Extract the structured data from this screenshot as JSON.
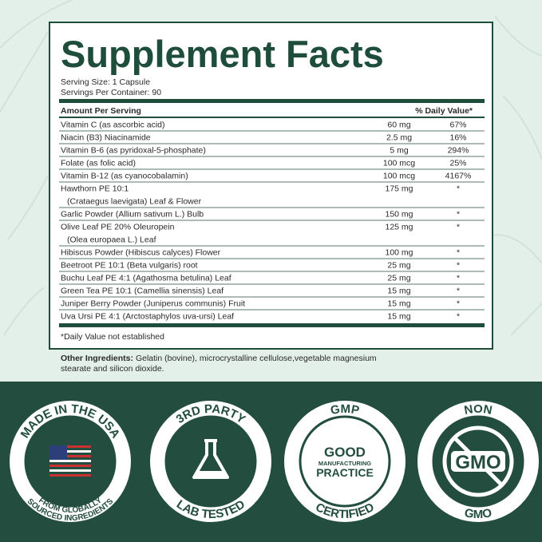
{
  "title": "Supplement Facts",
  "serving_size": "Serving Size: 1 Capsule",
  "servings_per_container": "Servings Per Container: 90",
  "header": {
    "amount": "Amount Per Serving",
    "daily_value": "% Daily Value*"
  },
  "rows": [
    {
      "name": [
        "Vitamin C (as ascorbic acid)"
      ],
      "amount": "60 mg",
      "dv": "67%"
    },
    {
      "name": [
        "Niacin (B3) Niacinamide"
      ],
      "amount": "2.5 mg",
      "dv": "16%"
    },
    {
      "name": [
        "Vitamin B-6 (as pyridoxal-5-phosphate)"
      ],
      "amount": "5 mg",
      "dv": "294%"
    },
    {
      "name": [
        "Folate (as folic acid)"
      ],
      "amount": "100 mcg",
      "dv": "25%"
    },
    {
      "name": [
        "Vitamin B-12 (as cyanocobalamin)"
      ],
      "amount": "100 mcg",
      "dv": "4167%"
    },
    {
      "name": [
        "Hawthorn PE 10:1",
        "(Crataegus laevigata) Leaf & Flower"
      ],
      "amount": "175 mg",
      "dv": "*"
    },
    {
      "name": [
        "Garlic Powder (Allium sativum L.) Bulb"
      ],
      "amount": "150 mg",
      "dv": "*"
    },
    {
      "name": [
        "Olive Leaf PE 20% Oleuropein",
        "(Olea europaea L.) Leaf"
      ],
      "amount": "125 mg",
      "dv": "*"
    },
    {
      "name": [
        "Hibiscus Powder (Hibiscus calyces) Flower"
      ],
      "amount": "100 mg",
      "dv": "*"
    },
    {
      "name": [
        "Beetroot PE 10:1 (Beta vulgaris) root"
      ],
      "amount": "25 mg",
      "dv": "*"
    },
    {
      "name": [
        "Buchu Leaf PE 4:1 (Agathosma betulina) Leaf"
      ],
      "amount": "25 mg",
      "dv": "*"
    },
    {
      "name": [
        "Green Tea PE 10:1 (Camellia sinensis) Leaf"
      ],
      "amount": "15 mg",
      "dv": "*"
    },
    {
      "name": [
        "Juniper Berry Powder (Juniperus communis) Fruit"
      ],
      "amount": "15 mg",
      "dv": "*"
    },
    {
      "name": [
        "Uva Ursi PE 4:1 (Arctostaphylos uva-ursi) Leaf"
      ],
      "amount": "15 mg",
      "dv": "*"
    }
  ],
  "footnote": "*Daily Value not established",
  "other_ingredients": {
    "label": "Other Ingredients:",
    "lines": [
      "Gelatin (bovine), microcrystalline cellulose,vegetable magnesium",
      "stearate and silicon dioxide."
    ]
  },
  "badges": [
    {
      "top": "MADE IN THE USA",
      "bottom": [
        "FROM GLOBALLY",
        "SOURCED INGREDIENTS"
      ]
    },
    {
      "top": "3RD PARTY",
      "bottom": [
        "LAB TESTED"
      ]
    },
    {
      "top": "GMP",
      "bottom": [
        "CERTIFIED"
      ],
      "inner": [
        "GOOD",
        "MANUFACTURING",
        "PRACTICE"
      ]
    },
    {
      "top": "NON",
      "bottom": [
        "GMO"
      ],
      "inner": [
        "GMO"
      ]
    }
  ]
}
